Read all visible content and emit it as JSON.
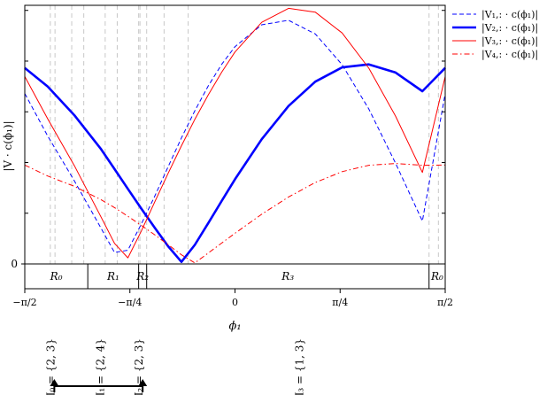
{
  "chart_data": {
    "type": "line",
    "title": "",
    "xlabel": "ϕ₁",
    "ylabel": "|V · c(ϕ₁)|",
    "x_unit": "radians",
    "xlim": [
      -1.5708,
      1.5708
    ],
    "ylim": [
      0,
      1.02
    ],
    "x_ticks": [
      {
        "value": -1.5708,
        "label": "−π/2"
      },
      {
        "value": -0.7854,
        "label": "−π/4"
      },
      {
        "value": 0,
        "label": "0"
      },
      {
        "value": 0.7854,
        "label": "π/4"
      },
      {
        "value": 1.5708,
        "label": "π/2"
      }
    ],
    "y_ticks": [
      {
        "value": 0,
        "label": "0"
      }
    ],
    "grid": false,
    "legend_position": "outside-right",
    "x": [
      -1.5708,
      -1.4,
      -1.2,
      -1.0,
      -0.9,
      -0.8,
      -0.7,
      -0.6,
      -0.5,
      -0.4,
      -0.3,
      -0.2,
      -0.1,
      0.0,
      0.2,
      0.4,
      0.6,
      0.8,
      1.0,
      1.2,
      1.4,
      1.5708
    ],
    "series": [
      {
        "name": "|V₁,: · c(ϕ₁)|",
        "color": "#0000ff",
        "dash": "dashed",
        "width": 1,
        "values": [
          0.672,
          0.505,
          0.327,
          0.14,
          0.045,
          0.054,
          0.158,
          0.267,
          0.383,
          0.497,
          0.604,
          0.702,
          0.787,
          0.857,
          0.943,
          0.961,
          0.907,
          0.786,
          0.611,
          0.397,
          0.169,
          0.672
        ]
      },
      {
        "name": "|V₂,: · c(ϕ₁)|",
        "color": "#0000ff",
        "dash": "solid",
        "width": 2.6,
        "values": [
          0.773,
          0.7,
          0.586,
          0.452,
          0.374,
          0.296,
          0.218,
          0.143,
          0.07,
          0.008,
          0.075,
          0.161,
          0.248,
          0.334,
          0.492,
          0.623,
          0.719,
          0.775,
          0.787,
          0.755,
          0.681,
          0.773
        ]
      },
      {
        "name": "|V₃,: · c(ϕ₁)|",
        "color": "#ff0000",
        "dash": "solid",
        "width": 1,
        "values": [
          0.739,
          0.573,
          0.387,
          0.184,
          0.081,
          0.024,
          0.13,
          0.244,
          0.357,
          0.466,
          0.57,
          0.667,
          0.756,
          0.836,
          0.953,
          1.008,
          0.993,
          0.911,
          0.772,
          0.583,
          0.361,
          0.739
        ]
      },
      {
        "name": "|V₄,: · c(ϕ₁)|",
        "color": "#ff0000",
        "dash": "dashdot",
        "width": 1,
        "values": [
          0.39,
          0.347,
          0.306,
          0.253,
          0.222,
          0.188,
          0.152,
          0.115,
          0.076,
          0.036,
          0.004,
          0.043,
          0.082,
          0.121,
          0.196,
          0.264,
          0.321,
          0.364,
          0.389,
          0.396,
          0.389,
          0.39
        ]
      }
    ],
    "vertical_lines": [
      -1.38,
      -1.345,
      -1.22,
      -1.13,
      -0.97,
      -0.88,
      -0.72,
      -0.71,
      -0.66,
      -0.53,
      -0.35,
      1.45,
      1.52
    ],
    "regions": [
      {
        "label": "R₀",
        "from": -1.5708,
        "to": -1.1,
        "faded": false
      },
      {
        "label": "R₁",
        "from": -1.1,
        "to": -0.72,
        "faded": false
      },
      {
        "label": "R₂",
        "from": -0.72,
        "to": -0.66,
        "faded": false
      },
      {
        "label": "R₃",
        "from": -0.66,
        "to": 1.45,
        "faded": false
      },
      {
        "label": "R₀",
        "from": 1.45,
        "to": 1.5708,
        "faded": true
      }
    ],
    "index_labels": [
      {
        "text": "I₀ = {2, 3}",
        "at": -1.35
      },
      {
        "text": "I₁ = {2, 4}",
        "at": -0.98
      },
      {
        "text": "I₂ = {2, 3}",
        "at": -0.69
      },
      {
        "text": "I₃ = {1, 3}",
        "at": 0.51
      }
    ],
    "arrow": {
      "from": -1.35,
      "to": -0.69
    }
  }
}
